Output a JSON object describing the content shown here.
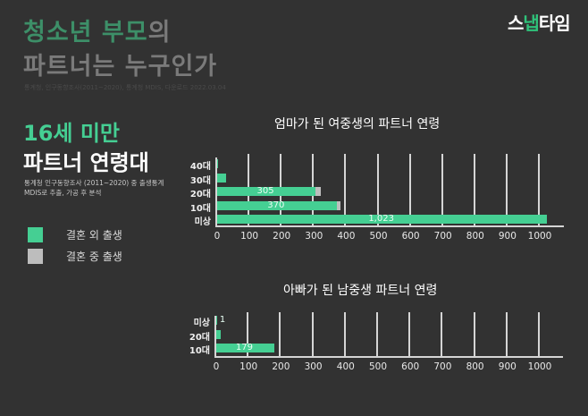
{
  "header": {
    "title_line1_green": "청소년 부모",
    "title_line1_rest": "의",
    "title_line2": "파트너는 누구인가",
    "source": "통계청, 인구동향조사(2011~2020), 통계청 MDIS, 다운로드 2022.03.04"
  },
  "logo": {
    "part1": "스",
    "part2": "냅",
    "part3": "타임"
  },
  "side": {
    "subtitle_green": "16세 미만",
    "subtitle_white": "파트너 연령대",
    "note_line1": "통계청 인구동향조사 (2011~2020) 중 출생통계",
    "note_line2": "MDIS로 추출, 가공 후 분석"
  },
  "legend": [
    {
      "label": "결혼 외 출생",
      "color": "#45cf93"
    },
    {
      "label": "결혼 중 출생",
      "color": "#bdbdbd"
    }
  ],
  "colors": {
    "background": "#323232",
    "out_of_wedlock": "#45cf93",
    "in_wedlock": "#bdbdbd",
    "accent_green": "#3d8f68"
  },
  "chart_data": [
    {
      "type": "bar",
      "orientation": "horizontal",
      "stacked": true,
      "title": "엄마가 된 여중생의 파트너 연령",
      "categories": [
        "40대",
        "30대",
        "20대",
        "10대",
        "미상"
      ],
      "series": [
        {
          "name": "결혼 외 출생",
          "values": [
            3,
            28,
            305,
            370,
            1023
          ]
        },
        {
          "name": "결혼 중 출생",
          "values": [
            0,
            0,
            16,
            12,
            0
          ]
        }
      ],
      "data_labels": [
        "",
        "",
        "305",
        "370",
        "1,023"
      ],
      "xlabel": "",
      "ylabel": "",
      "xlim": [
        0,
        1000
      ],
      "ticks": [
        "0",
        "100",
        "200",
        "300",
        "400",
        "500",
        "600",
        "700",
        "800",
        "900",
        "1000"
      ],
      "grid": "vertical"
    },
    {
      "type": "bar",
      "orientation": "horizontal",
      "stacked": true,
      "title": "아빠가 된 남중생 파트너 연령",
      "categories": [
        "미상",
        "20대",
        "10대"
      ],
      "series": [
        {
          "name": "결혼 외 출생",
          "values": [
            1,
            13,
            179
          ]
        },
        {
          "name": "결혼 중 출생",
          "values": [
            0,
            0,
            0
          ]
        }
      ],
      "data_labels": [
        "1",
        "",
        "179"
      ],
      "xlabel": "",
      "ylabel": "",
      "xlim": [
        0,
        1000
      ],
      "ticks": [
        "0",
        "100",
        "200",
        "300",
        "400",
        "500",
        "600",
        "700",
        "800",
        "900",
        "1000"
      ],
      "grid": "vertical"
    }
  ]
}
